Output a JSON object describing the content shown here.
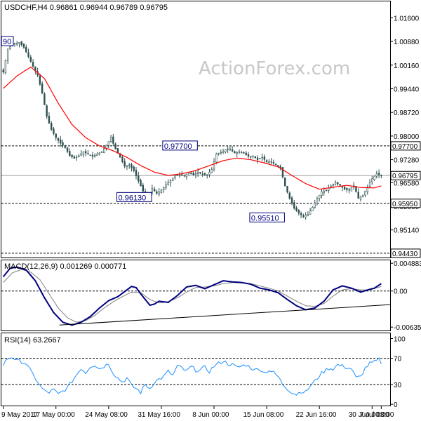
{
  "chart_data": [
    {
      "type": "candlestick",
      "symbol_line": "USDCHF,H4  0.96861 0.96944 0.96789 0.96795",
      "ylim": [
        0.943,
        1.021
      ],
      "ticks": [
        "1.01600",
        "1.00880",
        "1.00160",
        "0.99440",
        "0.98720",
        "0.98000",
        "0.97280",
        "0.96580",
        "0.95860",
        "0.95140",
        "0.94430"
      ],
      "tick_values": [
        1.016,
        1.0088,
        1.0016,
        0.9944,
        0.9872,
        0.98,
        0.9728,
        0.9658,
        0.9586,
        0.9514,
        0.9443
      ],
      "price_tags": [
        {
          "value": 0.977,
          "text": "0.97700",
          "style": "dashed"
        },
        {
          "value": 0.96795,
          "text": "0.96795",
          "style": "solid"
        },
        {
          "value": 0.9595,
          "text": "0.95950",
          "style": "dashed"
        },
        {
          "value": 0.9443,
          "text": "0.94430",
          "style": "dashed"
        }
      ],
      "annotations": [
        {
          "text": "90",
          "x": 0.5,
          "y": 1.0088
        },
        {
          "text": "0.97700",
          "x": 80,
          "y": 0.977
        },
        {
          "text": "0.96130",
          "x": 60,
          "y": 0.9613
        },
        {
          "text": "0.95510",
          "x": 118,
          "y": 0.9551
        }
      ],
      "close_keypoints": [
        [
          0,
          0.9995
        ],
        [
          2,
          1.0065
        ],
        [
          4,
          1.008
        ],
        [
          7,
          1.0085
        ],
        [
          9,
          1.007
        ],
        [
          11,
          1.0042
        ],
        [
          13,
          1.0012
        ],
        [
          15,
          0.9985
        ],
        [
          17,
          0.993
        ],
        [
          19,
          0.986
        ],
        [
          21,
          0.982
        ],
        [
          23,
          0.9795
        ],
        [
          25,
          0.9778
        ],
        [
          27,
          0.9765
        ],
        [
          29,
          0.974
        ],
        [
          31,
          0.9732
        ],
        [
          33,
          0.974
        ],
        [
          35,
          0.9752
        ],
        [
          37,
          0.9745
        ],
        [
          39,
          0.9738
        ],
        [
          41,
          0.9745
        ],
        [
          43,
          0.9752
        ],
        [
          45,
          0.9772
        ],
        [
          47,
          0.9795
        ],
        [
          49,
          0.976
        ],
        [
          51,
          0.9735
        ],
        [
          53,
          0.9708
        ],
        [
          55,
          0.9712
        ],
        [
          57,
          0.9695
        ],
        [
          59,
          0.9663
        ],
        [
          61,
          0.9632
        ],
        [
          63,
          0.9618
        ],
        [
          65,
          0.964
        ],
        [
          67,
          0.9625
        ],
        [
          69,
          0.9635
        ],
        [
          71,
          0.9652
        ],
        [
          73,
          0.9664
        ],
        [
          75,
          0.968
        ],
        [
          77,
          0.9682
        ],
        [
          79,
          0.9679
        ],
        [
          81,
          0.9689
        ],
        [
          83,
          0.9682
        ],
        [
          85,
          0.969
        ],
        [
          87,
          0.9683
        ],
        [
          89,
          0.9682
        ],
        [
          91,
          0.9698
        ],
        [
          93,
          0.9745
        ],
        [
          95,
          0.975
        ],
        [
          97,
          0.9758
        ],
        [
          99,
          0.9761
        ],
        [
          101,
          0.9748
        ],
        [
          103,
          0.9752
        ],
        [
          105,
          0.9748
        ],
        [
          107,
          0.9738
        ],
        [
          109,
          0.974
        ],
        [
          111,
          0.9728
        ],
        [
          113,
          0.9735
        ],
        [
          115,
          0.9722
        ],
        [
          117,
          0.9722
        ],
        [
          119,
          0.9712
        ],
        [
          121,
          0.9702
        ],
        [
          123,
          0.9648
        ],
        [
          125,
          0.961
        ],
        [
          127,
          0.958
        ],
        [
          129,
          0.9565
        ],
        [
          131,
          0.9555
        ],
        [
          133,
          0.9562
        ],
        [
          135,
          0.9583
        ],
        [
          137,
          0.961
        ],
        [
          139,
          0.963
        ],
        [
          141,
          0.9635
        ],
        [
          143,
          0.9648
        ],
        [
          145,
          0.9658
        ],
        [
          147,
          0.965
        ],
        [
          149,
          0.9638
        ],
        [
          151,
          0.9635
        ],
        [
          153,
          0.965
        ],
        [
          155,
          0.961
        ],
        [
          157,
          0.962
        ],
        [
          159,
          0.9645
        ],
        [
          161,
          0.967
        ],
        [
          163,
          0.9685
        ],
        [
          165,
          0.96795
        ]
      ],
      "moving_average_keypoints": [
        [
          0,
          0.9945
        ],
        [
          6,
          0.9983
        ],
        [
          12,
          1.001
        ],
        [
          18,
          0.9975
        ],
        [
          24,
          0.99
        ],
        [
          30,
          0.9835
        ],
        [
          36,
          0.9795
        ],
        [
          42,
          0.977
        ],
        [
          48,
          0.9755
        ],
        [
          54,
          0.9735
        ],
        [
          60,
          0.971
        ],
        [
          66,
          0.969
        ],
        [
          72,
          0.968
        ],
        [
          78,
          0.9685
        ],
        [
          84,
          0.9695
        ],
        [
          90,
          0.971
        ],
        [
          96,
          0.9725
        ],
        [
          102,
          0.9733
        ],
        [
          108,
          0.9728
        ],
        [
          114,
          0.9718
        ],
        [
          120,
          0.9706
        ],
        [
          126,
          0.968
        ],
        [
          132,
          0.9655
        ],
        [
          138,
          0.9638
        ],
        [
          144,
          0.9644
        ],
        [
          150,
          0.965
        ],
        [
          156,
          0.9643
        ],
        [
          162,
          0.9642
        ],
        [
          165,
          0.9648
        ]
      ]
    },
    {
      "type": "line",
      "title": "MACD(12,26,9) 0.001269 0.000771",
      "ylim": [
        -0.00695,
        0.0054
      ],
      "ticks": [
        "0.004883",
        "0.00",
        "-0.006354"
      ],
      "tick_values": [
        0.004883,
        0,
        -0.006354
      ],
      "macd_keypoints": [
        [
          0,
          0.0025
        ],
        [
          3,
          0.004
        ],
        [
          6,
          0.0042
        ],
        [
          10,
          0.0037
        ],
        [
          14,
          0.0018
        ],
        [
          18,
          -0.0012
        ],
        [
          22,
          -0.0038
        ],
        [
          26,
          -0.0055
        ],
        [
          30,
          -0.006
        ],
        [
          34,
          -0.0055
        ],
        [
          38,
          -0.0045
        ],
        [
          42,
          -0.003
        ],
        [
          46,
          -0.0017
        ],
        [
          50,
          -0.001
        ],
        [
          54,
          0.0002
        ],
        [
          56,
          0.0008
        ],
        [
          58,
          0.0006
        ],
        [
          60,
          -0.0005
        ],
        [
          62,
          -0.0015
        ],
        [
          64,
          -0.0025
        ],
        [
          66,
          -0.0023
        ],
        [
          68,
          -0.0018
        ],
        [
          72,
          -0.002
        ],
        [
          76,
          -0.0008
        ],
        [
          80,
          0.0007
        ],
        [
          84,
          0.001
        ],
        [
          88,
          0.0004
        ],
        [
          92,
          0.0011
        ],
        [
          96,
          0.0018
        ],
        [
          100,
          0.0016
        ],
        [
          104,
          0.0015
        ],
        [
          108,
          0.0012
        ],
        [
          112,
          0.0005
        ],
        [
          116,
          0.0002
        ],
        [
          120,
          -0.0003
        ],
        [
          124,
          -0.0015
        ],
        [
          128,
          -0.0026
        ],
        [
          132,
          -0.0033
        ],
        [
          136,
          -0.003
        ],
        [
          140,
          -0.0018
        ],
        [
          144,
          0.0002
        ],
        [
          148,
          0.0009
        ],
        [
          152,
          0.0005
        ],
        [
          156,
          -0.0002
        ],
        [
          160,
          0.0003
        ],
        [
          162,
          0.0005
        ],
        [
          165,
          0.0013
        ]
      ],
      "signal_keypoints": [
        [
          0,
          0.0015
        ],
        [
          4,
          0.0032
        ],
        [
          8,
          0.0038
        ],
        [
          12,
          0.0033
        ],
        [
          16,
          0.002
        ],
        [
          20,
          -0.0005
        ],
        [
          24,
          -0.003
        ],
        [
          28,
          -0.0047
        ],
        [
          32,
          -0.0055
        ],
        [
          36,
          -0.0052
        ],
        [
          40,
          -0.0043
        ],
        [
          44,
          -0.003
        ],
        [
          48,
          -0.0019
        ],
        [
          52,
          -0.001
        ],
        [
          56,
          -0.0002
        ],
        [
          60,
          -0.0003
        ],
        [
          64,
          -0.0015
        ],
        [
          68,
          -0.0021
        ],
        [
          72,
          -0.0019
        ],
        [
          76,
          -0.0012
        ],
        [
          80,
          -0.0002
        ],
        [
          84,
          0.0006
        ],
        [
          88,
          0.0007
        ],
        [
          92,
          0.0009
        ],
        [
          96,
          0.0013
        ],
        [
          100,
          0.0015
        ],
        [
          104,
          0.0014
        ],
        [
          108,
          0.0013
        ],
        [
          112,
          0.0009
        ],
        [
          116,
          0.0005
        ],
        [
          120,
          0.0
        ],
        [
          124,
          -0.0009
        ],
        [
          128,
          -0.0018
        ],
        [
          132,
          -0.0026
        ],
        [
          136,
          -0.0027
        ],
        [
          140,
          -0.0022
        ],
        [
          144,
          -0.0009
        ],
        [
          148,
          0.0002
        ],
        [
          152,
          0.0004
        ],
        [
          156,
          0.0002
        ],
        [
          160,
          0.0002
        ],
        [
          165,
          0.0008
        ]
      ],
      "trendline": [
        [
          0,
          -0.0052
        ],
        [
          165,
          -0.0024
        ]
      ]
    },
    {
      "type": "line",
      "title": "RSI(14) 63.2667",
      "ylim": [
        -2,
        108
      ],
      "ticks": [
        "100",
        "70",
        "30",
        "0"
      ],
      "tick_values": [
        100,
        70,
        30,
        0
      ],
      "reference_levels": [
        70,
        30
      ],
      "rsi_keypoints": [
        [
          0,
          60
        ],
        [
          2,
          70
        ],
        [
          4,
          72
        ],
        [
          6,
          66
        ],
        [
          8,
          65
        ],
        [
          10,
          62
        ],
        [
          12,
          50
        ],
        [
          14,
          40
        ],
        [
          16,
          28
        ],
        [
          18,
          20
        ],
        [
          20,
          18
        ],
        [
          22,
          22
        ],
        [
          24,
          15
        ],
        [
          26,
          20
        ],
        [
          28,
          25
        ],
        [
          30,
          35
        ],
        [
          32,
          45
        ],
        [
          34,
          55
        ],
        [
          36,
          48
        ],
        [
          38,
          58
        ],
        [
          40,
          60
        ],
        [
          42,
          54
        ],
        [
          44,
          58
        ],
        [
          46,
          62
        ],
        [
          48,
          48
        ],
        [
          50,
          40
        ],
        [
          52,
          34
        ],
        [
          54,
          40
        ],
        [
          56,
          28
        ],
        [
          58,
          24
        ],
        [
          60,
          18
        ],
        [
          62,
          30
        ],
        [
          64,
          24
        ],
        [
          66,
          34
        ],
        [
          68,
          38
        ],
        [
          70,
          42
        ],
        [
          72,
          50
        ],
        [
          74,
          44
        ],
        [
          76,
          58
        ],
        [
          78,
          55
        ],
        [
          80,
          50
        ],
        [
          82,
          57
        ],
        [
          84,
          52
        ],
        [
          86,
          52
        ],
        [
          88,
          56
        ],
        [
          90,
          50
        ],
        [
          92,
          58
        ],
        [
          94,
          62
        ],
        [
          96,
          66
        ],
        [
          98,
          62
        ],
        [
          100,
          60
        ],
        [
          102,
          56
        ],
        [
          104,
          58
        ],
        [
          106,
          60
        ],
        [
          108,
          56
        ],
        [
          110,
          52
        ],
        [
          112,
          54
        ],
        [
          114,
          48
        ],
        [
          116,
          52
        ],
        [
          118,
          48
        ],
        [
          120,
          42
        ],
        [
          122,
          30
        ],
        [
          124,
          24
        ],
        [
          126,
          18
        ],
        [
          128,
          15
        ],
        [
          130,
          20
        ],
        [
          132,
          18
        ],
        [
          134,
          28
        ],
        [
          136,
          35
        ],
        [
          138,
          44
        ],
        [
          140,
          50
        ],
        [
          142,
          55
        ],
        [
          144,
          54
        ],
        [
          146,
          60
        ],
        [
          148,
          58
        ],
        [
          150,
          56
        ],
        [
          152,
          54
        ],
        [
          154,
          40
        ],
        [
          156,
          42
        ],
        [
          158,
          55
        ],
        [
          160,
          62
        ],
        [
          162,
          64
        ],
        [
          164,
          68
        ],
        [
          165,
          63.27
        ]
      ]
    }
  ],
  "x_axis": {
    "labels": [
      "9 May 2017",
      "17 May 00:00",
      "24 May 08:00",
      "31 May 16:00",
      "8 Jun 00:00",
      "15 Jun 08:00",
      "22 Jun 16:00",
      "30 Jun 00:00",
      "7 Jul 08:00"
    ],
    "label_bar_index": [
      0,
      23,
      46,
      69,
      92,
      115,
      138,
      161,
      165
    ],
    "bar_count": 166
  },
  "watermark": "ActionForex.com",
  "colors": {
    "candle": "#2f4f4f",
    "moving_average": "#ff0000",
    "macd": "#000080",
    "signal": "#808080",
    "rsi": "#1e90ff",
    "grid_dash": "#000000"
  }
}
